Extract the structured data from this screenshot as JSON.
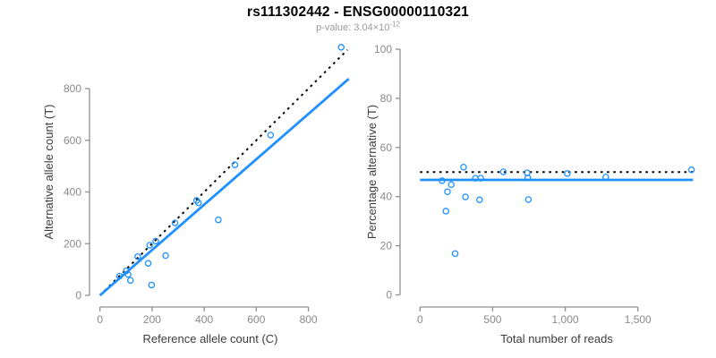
{
  "header": {
    "title": "rs111302442 - ENSG00000110321",
    "pvalue_prefix": "p-value: 3.04×10",
    "pvalue_exponent": "-12"
  },
  "colors": {
    "accent_blue": "#1E90FF",
    "reference_black": "#000000",
    "axis_gray": "#8f8f8f",
    "tick_label_gray": "#8a8a8a",
    "axis_title_dark": "#3c3c3c",
    "subtitle_gray": "#9a9a9a",
    "background": "#ffffff"
  },
  "chart_data": [
    {
      "type": "scatter",
      "panel": "left",
      "xlabel": "Reference allele count (C)",
      "ylabel": "Alternative allele count (T)",
      "xticks": [
        0,
        200,
        400,
        600,
        800
      ],
      "xtick_labels": [
        "0",
        "200",
        "400",
        "600",
        "800"
      ],
      "yticks": [
        0,
        200,
        400,
        600,
        800
      ],
      "ytick_labels": [
        "0",
        "200",
        "400",
        "600",
        "800"
      ],
      "xlim": [
        0,
        960
      ],
      "ylim": [
        0,
        960
      ],
      "grid": false,
      "legend": null,
      "points": [
        [
          75,
          74
        ],
        [
          101,
          95
        ],
        [
          108,
          81
        ],
        [
          117,
          58
        ],
        [
          145,
          150
        ],
        [
          185,
          124
        ],
        [
          191,
          194
        ],
        [
          214,
          210
        ],
        [
          198,
          40
        ],
        [
          252,
          154
        ],
        [
          288,
          280
        ],
        [
          371,
          367
        ],
        [
          378,
          358
        ],
        [
          454,
          292
        ],
        [
          518,
          505
        ],
        [
          655,
          620
        ],
        [
          926,
          960
        ]
      ],
      "lines": [
        {
          "name": "identity-line",
          "x1": 0,
          "y1": 0,
          "x2": 950,
          "y2": 950,
          "style": "dotted",
          "color": "#000000"
        },
        {
          "name": "fit-line",
          "x1": 0,
          "y1": 0,
          "x2": 955,
          "y2": 838,
          "style": "solid",
          "color": "#1E90FF"
        }
      ]
    },
    {
      "type": "scatter",
      "panel": "right",
      "xlabel": "Total number of reads",
      "ylabel": "Percentage alternative (T)",
      "xticks": [
        0,
        500,
        1000,
        1500
      ],
      "xtick_labels": [
        "0",
        "500",
        "1,000",
        "1,500"
      ],
      "yticks": [
        0,
        20,
        40,
        60,
        80,
        100
      ],
      "ytick_labels": [
        "0",
        "20",
        "40",
        "60",
        "80",
        "100"
      ],
      "xlim": [
        0,
        1920
      ],
      "ylim": [
        0,
        103
      ],
      "grid": false,
      "legend": null,
      "points": [
        [
          152,
          46.5
        ],
        [
          215,
          44.9
        ],
        [
          189,
          42.0
        ],
        [
          178,
          34.1
        ],
        [
          242,
          16.8
        ],
        [
          300,
          52.0
        ],
        [
          313,
          39.9
        ],
        [
          381,
          47.5
        ],
        [
          418,
          47.5
        ],
        [
          410,
          38.7
        ],
        [
          574,
          50.1
        ],
        [
          738,
          49.7
        ],
        [
          742,
          47.6
        ],
        [
          746,
          38.8
        ],
        [
          1014,
          49.4
        ],
        [
          1279,
          48.0
        ],
        [
          1869,
          50.9
        ]
      ],
      "lines": [
        {
          "name": "expected-50pct-line",
          "x1": 0,
          "y1": 50,
          "x2": 1880,
          "y2": 50,
          "style": "dotted",
          "color": "#000000"
        },
        {
          "name": "mean-pct-line",
          "x1": 0,
          "y1": 46.8,
          "x2": 1880,
          "y2": 46.8,
          "style": "solid",
          "color": "#1E90FF"
        }
      ]
    }
  ]
}
